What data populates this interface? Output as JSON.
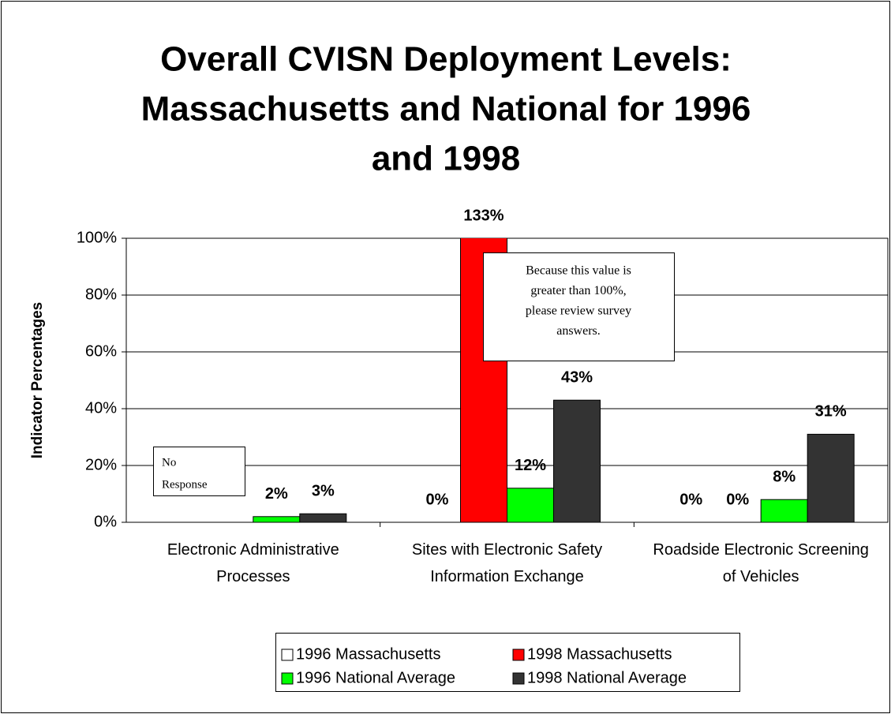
{
  "chart_data": {
    "type": "bar",
    "title": [
      "Overall CVISN Deployment Levels:",
      "Massachusetts and National for 1996",
      "and 1998"
    ],
    "y_label": "Indicator Percentages",
    "categories": [
      "Electronic Administrative Processes",
      "Sites with Electronic Safety Information Exchange",
      "Roadside Electronic Screening of Vehicles"
    ],
    "series": [
      {
        "name": "1996 Massachusetts",
        "color": "#ffffff",
        "values": [
          null,
          0,
          0
        ],
        "value_labels": [
          null,
          "0%",
          "0%"
        ]
      },
      {
        "name": "1998 Massachusetts",
        "color": "#ff0000",
        "values": [
          null,
          133,
          0
        ],
        "value_labels": [
          null,
          "133%",
          "0%"
        ]
      },
      {
        "name": "1996 National Average",
        "color": "#00ff00",
        "values": [
          2,
          12,
          8
        ],
        "value_labels": [
          "2%",
          "12%",
          "8%"
        ]
      },
      {
        "name": "1998 National Average",
        "color": "#333333",
        "values": [
          3,
          43,
          31
        ],
        "value_labels": [
          "3%",
          "43%",
          "31%"
        ]
      }
    ],
    "ylim": [
      0,
      100
    ],
    "yticks": [
      {
        "value": 0,
        "label": "0%"
      },
      {
        "value": 20,
        "label": "20%"
      },
      {
        "value": 40,
        "label": "40%"
      },
      {
        "value": 60,
        "label": "60%"
      },
      {
        "value": 80,
        "label": "80%"
      },
      {
        "value": 100,
        "label": "100%"
      }
    ],
    "grid": true,
    "legend": "bottom",
    "annotations": [
      {
        "lines": [
          "No",
          "Response"
        ]
      },
      {
        "lines": [
          "Because this value is",
          "greater than 100%,",
          "please review survey",
          "answers."
        ]
      }
    ]
  }
}
